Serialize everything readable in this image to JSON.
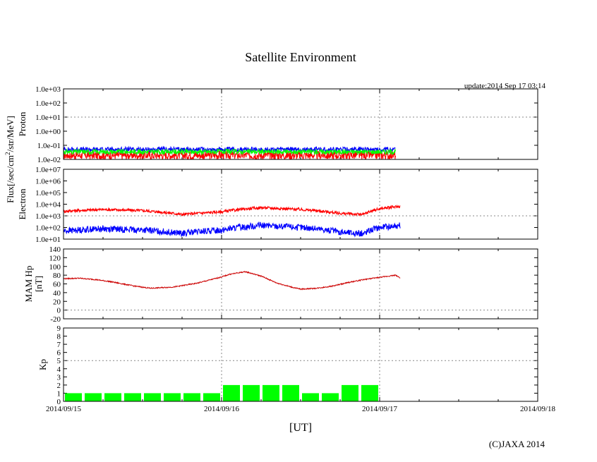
{
  "chart_data": {
    "type": "line",
    "title": "Satellite Environment",
    "update": "update:2014 Sep 17 03:14",
    "xlabel": "[UT]",
    "copyright": "(C)JAXA 2014",
    "shared_ylabel": "Flux[/sec/cm",
    "shared_ylabel_sup": "2",
    "shared_ylabel_tail": "/str/MeV]",
    "x_ticks": [
      "2014/09/15",
      "2014/09/16",
      "2014/09/17",
      "2014/09/18"
    ],
    "x_range_days": [
      0,
      3
    ],
    "grid": "dotted at day boundaries and reference levels",
    "panels": [
      {
        "name": "Proton",
        "ylabel": "Proton",
        "yscale": "log",
        "ylim": [
          0.01,
          1000
        ],
        "y_ticks": [
          "1.0e-02",
          "1.0e-01",
          "1.0e+00",
          "1.0e+01",
          "1.0e+02",
          "1.0e+03"
        ],
        "series": [
          {
            "color": "#ff0000",
            "x_days": [
              0,
              0.5,
              1.0,
              1.5,
              2.1
            ],
            "values": [
              0.02,
              0.02,
              0.02,
              0.02,
              0.02
            ]
          },
          {
            "color": "#0000ff",
            "x_days": [
              0,
              0.5,
              1.0,
              1.5,
              2.1
            ],
            "values": [
              0.05,
              0.05,
              0.05,
              0.05,
              0.05
            ]
          },
          {
            "color": "#00ff00",
            "x_days": [
              0,
              0.5,
              1.0,
              1.5,
              2.1
            ],
            "values": [
              0.035,
              0.035,
              0.035,
              0.035,
              0.035
            ]
          }
        ]
      },
      {
        "name": "Electron",
        "ylabel": "Electron",
        "yscale": "log",
        "ylim": [
          10,
          10000000
        ],
        "y_ticks": [
          "1.0e+01",
          "1.0e+02",
          "1.0e+03",
          "1.0e+04",
          "1.0e+05",
          "1.0e+06",
          "1.0e+07"
        ],
        "series": [
          {
            "color": "#ff0000",
            "x_days": [
              0,
              0.25,
              0.5,
              0.75,
              1.0,
              1.25,
              1.5,
              1.75,
              1.9,
              2.0,
              2.13
            ],
            "values": [
              2500,
              3500,
              2800,
              1300,
              2200,
              5000,
              3500,
              1600,
              1300,
              4000,
              6500
            ]
          },
          {
            "color": "#0000ff",
            "x_days": [
              0,
              0.25,
              0.5,
              0.75,
              1.0,
              1.25,
              1.5,
              1.75,
              1.9,
              2.0,
              2.13
            ],
            "values": [
              50,
              80,
              60,
              30,
              60,
              150,
              100,
              40,
              30,
              100,
              150
            ]
          }
        ]
      },
      {
        "name": "MAM Hp",
        "ylabel": "MAM Hp",
        "ylabel2": "[nT]",
        "yscale": "linear",
        "ylim": [
          -20,
          140
        ],
        "y_ticks": [
          "-20",
          "0",
          "20",
          "40",
          "60",
          "80",
          "100",
          "120",
          "140"
        ],
        "series": [
          {
            "color": "#cc0000",
            "x_days": [
              0,
              0.1,
              0.2,
              0.3,
              0.45,
              0.55,
              0.7,
              0.85,
              1.0,
              1.05,
              1.15,
              1.25,
              1.35,
              1.45,
              1.5,
              1.6,
              1.7,
              1.8,
              1.9,
              2.0,
              2.1,
              2.13
            ],
            "values": [
              72,
              73,
              70,
              65,
              55,
              50,
              53,
              62,
              76,
              82,
              88,
              78,
              62,
              52,
              48,
              50,
              55,
              63,
              70,
              75,
              80,
              74
            ]
          }
        ]
      },
      {
        "name": "Kp",
        "ylabel": "Kp",
        "yscale": "linear",
        "ylim": [
          0,
          9
        ],
        "y_ticks": [
          "0",
          "1",
          "2",
          "3",
          "4",
          "5",
          "6",
          "7",
          "8",
          "9"
        ],
        "reference_line": 5,
        "bar_color": "#00ff00",
        "kp_values": [
          1,
          1,
          1,
          1,
          1,
          1,
          1,
          1,
          2,
          2,
          2,
          2,
          1,
          1,
          2,
          2
        ]
      }
    ]
  }
}
